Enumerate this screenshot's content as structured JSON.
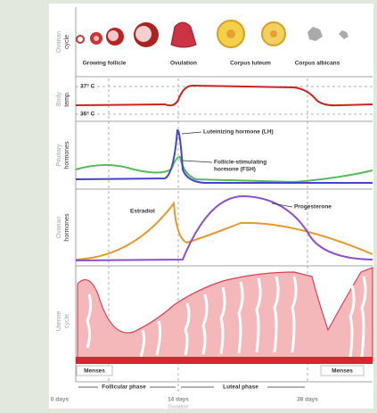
{
  "panels": [
    {
      "label": [
        "Ovarian",
        "cycle"
      ],
      "stages": [
        "Growing follicle",
        "Ovulation",
        "Corpus luteum",
        "Corpus albicans"
      ]
    },
    {
      "label": [
        "Body",
        "temp."
      ],
      "levels": [
        "37° C",
        "36° C"
      ]
    },
    {
      "label": [
        "Pituitary",
        "hormones"
      ],
      "curves": [
        "Luteinizing hormone (LH)",
        "Follicle-stimulating",
        "hormone (FSH)"
      ]
    },
    {
      "label": [
        "Ovarian",
        "hormones"
      ],
      "curves": [
        "Estradiol",
        "Progesterone"
      ]
    },
    {
      "label": [
        "Uterine",
        "cycle"
      ],
      "menses": [
        "Menses",
        "Menses"
      ]
    }
  ],
  "phases": [
    "Follicular phase",
    "Luteal phase"
  ],
  "days": [
    "0 days",
    "14 days",
    "28 days"
  ],
  "ovulation_note": "Ovulation"
}
